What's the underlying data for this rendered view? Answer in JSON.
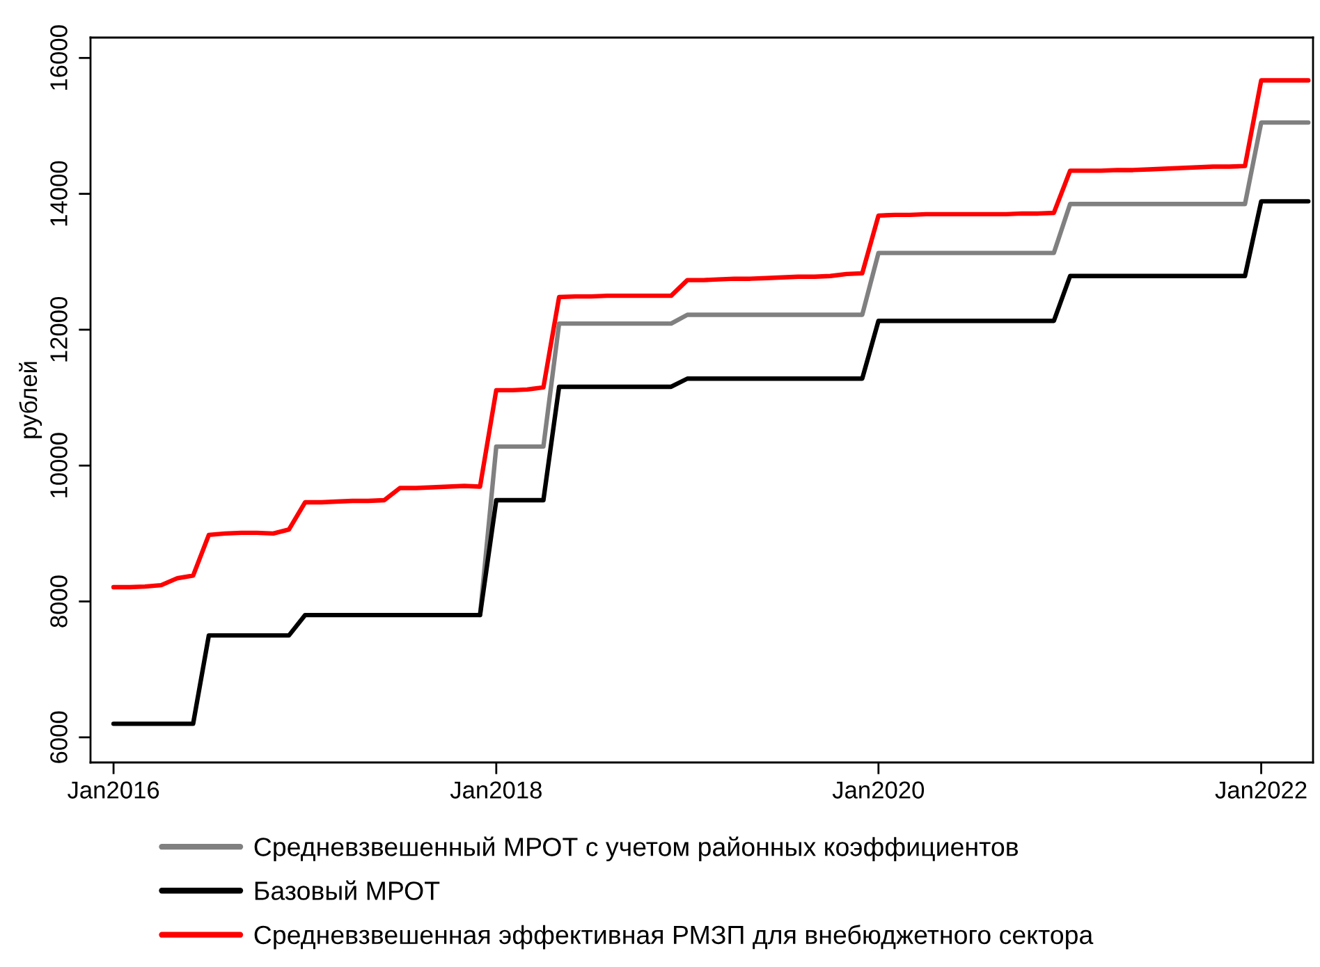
{
  "chart_data": {
    "type": "line",
    "ylabel": "рублей",
    "xlim": [
      "2015-11-18",
      "2022-04-10"
    ],
    "ylim": [
      5630,
      16300
    ],
    "xticks": [
      {
        "value": "2016-01",
        "label": "Jan2016"
      },
      {
        "value": "2018-01",
        "label": "Jan2018"
      },
      {
        "value": "2020-01",
        "label": "Jan2020"
      },
      {
        "value": "2022-01",
        "label": "Jan2022"
      }
    ],
    "yticks": [
      6000,
      8000,
      10000,
      12000,
      14000,
      16000
    ],
    "grid": false,
    "legend": "bottom",
    "line_style": "solid",
    "marker": "none",
    "series": [
      {
        "name": "Средневзвешенный МРОТ с учетом районных коэффициентов",
        "color": "#808080",
        "x": [
          "2017-12",
          "2018-01",
          "2018-02",
          "2018-03",
          "2018-04",
          "2018-05",
          "2018-06",
          "2018-07",
          "2018-08",
          "2018-09",
          "2018-10",
          "2018-11",
          "2018-12",
          "2019-01",
          "2019-02",
          "2019-03",
          "2019-04",
          "2019-05",
          "2019-06",
          "2019-07",
          "2019-08",
          "2019-09",
          "2019-10",
          "2019-11",
          "2019-12",
          "2020-01",
          "2020-02",
          "2020-03",
          "2020-04",
          "2020-05",
          "2020-06",
          "2020-07",
          "2020-08",
          "2020-09",
          "2020-10",
          "2020-11",
          "2020-12",
          "2021-01",
          "2021-02",
          "2021-03",
          "2021-04",
          "2021-05",
          "2021-06",
          "2021-07",
          "2021-08",
          "2021-09",
          "2021-10",
          "2021-11",
          "2021-12",
          "2022-01",
          "2022-02",
          "2022-03",
          "2022-04"
        ],
        "values": [
          7800,
          10280,
          10280,
          10280,
          10280,
          12090,
          12090,
          12090,
          12090,
          12090,
          12090,
          12090,
          12090,
          12220,
          12220,
          12220,
          12220,
          12220,
          12220,
          12220,
          12220,
          12220,
          12220,
          12220,
          12220,
          13130,
          13130,
          13130,
          13130,
          13130,
          13130,
          13130,
          13130,
          13130,
          13130,
          13130,
          13130,
          13850,
          13850,
          13850,
          13850,
          13850,
          13850,
          13850,
          13850,
          13850,
          13850,
          13850,
          13850,
          15050,
          15050,
          15050,
          15050
        ]
      },
      {
        "name": "Базовый МРОТ",
        "color": "#000000",
        "x": [
          "2016-01",
          "2016-02",
          "2016-03",
          "2016-04",
          "2016-05",
          "2016-06",
          "2016-07",
          "2016-08",
          "2016-09",
          "2016-10",
          "2016-11",
          "2016-12",
          "2017-01",
          "2017-02",
          "2017-03",
          "2017-04",
          "2017-05",
          "2017-06",
          "2017-07",
          "2017-08",
          "2017-09",
          "2017-10",
          "2017-11",
          "2017-12",
          "2018-01",
          "2018-02",
          "2018-03",
          "2018-04",
          "2018-05",
          "2018-06",
          "2018-07",
          "2018-08",
          "2018-09",
          "2018-10",
          "2018-11",
          "2018-12",
          "2019-01",
          "2019-02",
          "2019-03",
          "2019-04",
          "2019-05",
          "2019-06",
          "2019-07",
          "2019-08",
          "2019-09",
          "2019-10",
          "2019-11",
          "2019-12",
          "2020-01",
          "2020-02",
          "2020-03",
          "2020-04",
          "2020-05",
          "2020-06",
          "2020-07",
          "2020-08",
          "2020-09",
          "2020-10",
          "2020-11",
          "2020-12",
          "2021-01",
          "2021-02",
          "2021-03",
          "2021-04",
          "2021-05",
          "2021-06",
          "2021-07",
          "2021-08",
          "2021-09",
          "2021-10",
          "2021-11",
          "2021-12",
          "2022-01",
          "2022-02",
          "2022-03",
          "2022-04"
        ],
        "values": [
          6200,
          6200,
          6200,
          6200,
          6200,
          6200,
          7500,
          7500,
          7500,
          7500,
          7500,
          7500,
          7800,
          7800,
          7800,
          7800,
          7800,
          7800,
          7800,
          7800,
          7800,
          7800,
          7800,
          7800,
          9490,
          9490,
          9490,
          9490,
          11160,
          11160,
          11160,
          11160,
          11160,
          11160,
          11160,
          11160,
          11280,
          11280,
          11280,
          11280,
          11280,
          11280,
          11280,
          11280,
          11280,
          11280,
          11280,
          11280,
          12130,
          12130,
          12130,
          12130,
          12130,
          12130,
          12130,
          12130,
          12130,
          12130,
          12130,
          12130,
          12790,
          12790,
          12790,
          12790,
          12790,
          12790,
          12790,
          12790,
          12790,
          12790,
          12790,
          12790,
          13890,
          13890,
          13890,
          13890
        ]
      },
      {
        "name": "Средневзвешенная эффективная РМЗП для внебюджетного сектора",
        "color": "#ff0000",
        "x": [
          "2016-01",
          "2016-02",
          "2016-03",
          "2016-04",
          "2016-05",
          "2016-06",
          "2016-07",
          "2016-08",
          "2016-09",
          "2016-10",
          "2016-11",
          "2016-12",
          "2017-01",
          "2017-02",
          "2017-03",
          "2017-04",
          "2017-05",
          "2017-06",
          "2017-07",
          "2017-08",
          "2017-09",
          "2017-10",
          "2017-11",
          "2017-12",
          "2018-01",
          "2018-02",
          "2018-03",
          "2018-04",
          "2018-05",
          "2018-06",
          "2018-07",
          "2018-08",
          "2018-09",
          "2018-10",
          "2018-11",
          "2018-12",
          "2019-01",
          "2019-02",
          "2019-03",
          "2019-04",
          "2019-05",
          "2019-06",
          "2019-07",
          "2019-08",
          "2019-09",
          "2019-10",
          "2019-11",
          "2019-12",
          "2020-01",
          "2020-02",
          "2020-03",
          "2020-04",
          "2020-05",
          "2020-06",
          "2020-07",
          "2020-08",
          "2020-09",
          "2020-10",
          "2020-11",
          "2020-12",
          "2021-01",
          "2021-02",
          "2021-03",
          "2021-04",
          "2021-05",
          "2021-06",
          "2021-07",
          "2021-08",
          "2021-09",
          "2021-10",
          "2021-11",
          "2021-12",
          "2022-01",
          "2022-02",
          "2022-03",
          "2022-04"
        ],
        "values": [
          8210,
          8210,
          8220,
          8240,
          8340,
          8380,
          8980,
          9000,
          9010,
          9010,
          9000,
          9060,
          9460,
          9460,
          9470,
          9480,
          9480,
          9490,
          9670,
          9670,
          9680,
          9690,
          9700,
          9690,
          11110,
          11110,
          11120,
          11150,
          12480,
          12490,
          12490,
          12500,
          12500,
          12500,
          12500,
          12500,
          12730,
          12730,
          12740,
          12750,
          12750,
          12760,
          12770,
          12780,
          12780,
          12790,
          12820,
          12830,
          13680,
          13690,
          13690,
          13700,
          13700,
          13700,
          13700,
          13700,
          13700,
          13710,
          13710,
          13720,
          14340,
          14340,
          14340,
          14350,
          14350,
          14360,
          14370,
          14380,
          14390,
          14400,
          14400,
          14410,
          15670,
          15670,
          15670,
          15670
        ]
      }
    ]
  }
}
